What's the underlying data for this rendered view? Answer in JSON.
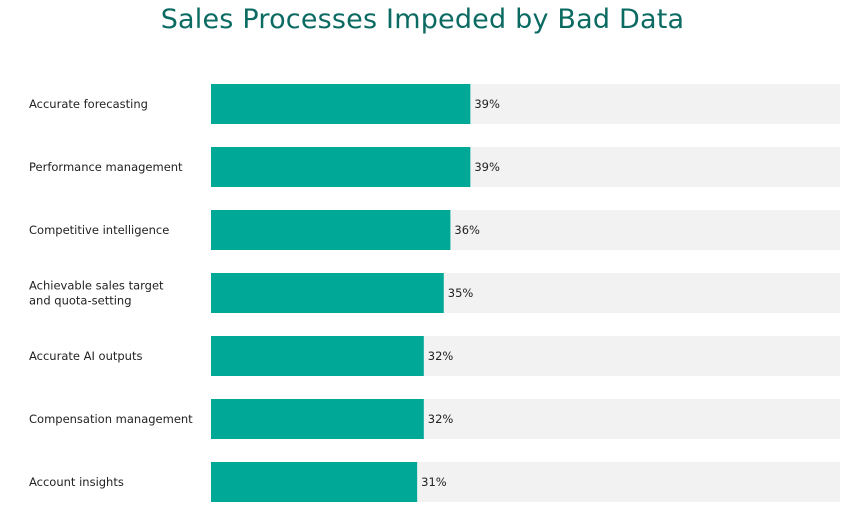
{
  "chart_data": {
    "type": "bar",
    "orientation": "horizontal",
    "title": "Sales Processes Impeded by Bad Data",
    "categories": [
      "Accurate forecasting",
      "Performance management",
      "Competitive intelligence",
      "Achievable sales target and quota-setting",
      "Accurate AI outputs",
      "Compensation management",
      "Account insights"
    ],
    "values": [
      39,
      39,
      36,
      35,
      32,
      32,
      31
    ],
    "value_labels": [
      "39%",
      "39%",
      "36%",
      "35%",
      "32%",
      "32%",
      "31%"
    ],
    "xlim": [
      0,
      100
    ],
    "unit": "%",
    "grid": false,
    "legend": "none",
    "colors": {
      "bar": "#00a898",
      "track": "#f2f2f2",
      "title": "#0b6b63",
      "text": "#222222"
    }
  }
}
